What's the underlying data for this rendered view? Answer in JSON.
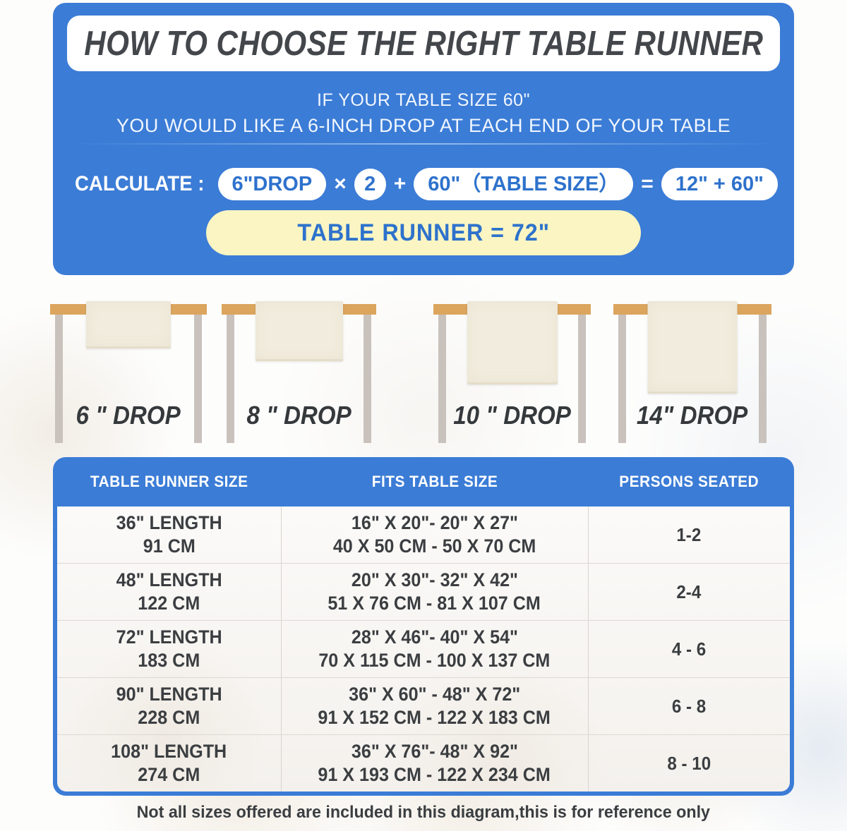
{
  "colors": {
    "panel_blue": "#3b7cd6",
    "pill_text_blue": "#2e72cc",
    "result_yellow": "#faf5c2",
    "title_dark": "#43464a",
    "tabletop_tan": "#dba55e",
    "leg_gray": "#c9c2bc",
    "runner_cream": "#f1ecdd"
  },
  "header": {
    "title": "HOW TO CHOOSE THE RIGHT TABLE RUNNER",
    "subtitle_line1": "IF YOUR TABLE SIZE 60\"",
    "subtitle_line2": "YOU WOULD LIKE A 6-INCH DROP AT EACH END OF YOUR TABLE"
  },
  "calculate": {
    "label": "CALCULATE :",
    "drop_pill": "6\"DROP",
    "times": "×",
    "factor": "2",
    "plus": "+",
    "size_pill": "60\"（TABLE SIZE）",
    "equals": "=",
    "result_pill": "12\" + 60\"",
    "runner_result": "TABLE RUNNER = 72\""
  },
  "drops": [
    {
      "label": "6 \" DROP"
    },
    {
      "label": "8 \" DROP"
    },
    {
      "label": "10 \" DROP"
    },
    {
      "label": "14\" DROP"
    }
  ],
  "table": {
    "headers": [
      "TABLE RUNNER SIZE",
      "FITS TABLE SIZE",
      "PERSONS SEATED"
    ],
    "rows": [
      {
        "size_in": "36\" LENGTH",
        "size_cm": "91 CM",
        "fits_in": "16\" X 20\"- 20\" X 27\"",
        "fits_cm": "40 X 50 CM - 50 X 70 CM",
        "persons": "1-2"
      },
      {
        "size_in": "48\" LENGTH",
        "size_cm": "122 CM",
        "fits_in": "20\" X 30\"- 32\" X 42\"",
        "fits_cm": "51 X 76 CM - 81 X 107 CM",
        "persons": "2-4"
      },
      {
        "size_in": "72\" LENGTH",
        "size_cm": "183 CM",
        "fits_in": "28\" X 46\"- 40\" X 54\"",
        "fits_cm": "70 X 115 CM - 100 X 137 CM",
        "persons": "4 - 6"
      },
      {
        "size_in": "90\" LENGTH",
        "size_cm": "228 CM",
        "fits_in": "36\" X 60\" - 48\" X 72\"",
        "fits_cm": "91 X 152 CM - 122 X 183 CM",
        "persons": "6 - 8"
      },
      {
        "size_in": "108\" LENGTH",
        "size_cm": "274 CM",
        "fits_in": "36\" X 76\"- 48\" X 92\"",
        "fits_cm": "91 X 193 CM - 122 X 234 CM",
        "persons": "8 - 10"
      }
    ]
  },
  "footer": {
    "note": "Not all sizes offered are included in this diagram,this is for reference only"
  }
}
